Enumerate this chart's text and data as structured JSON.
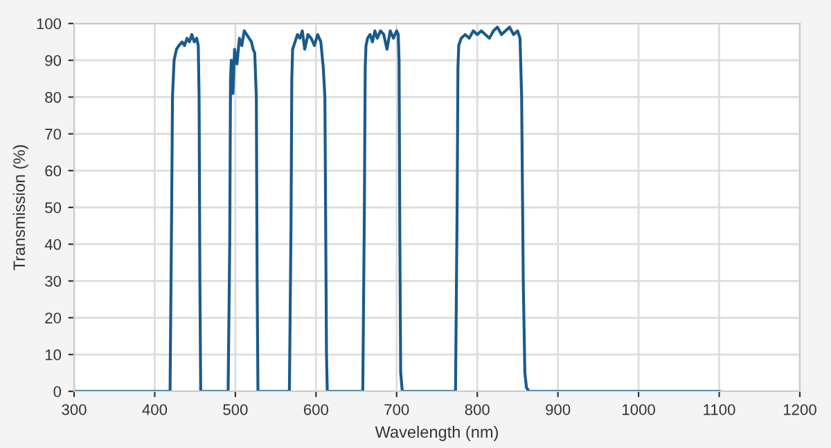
{
  "chart_data": {
    "type": "line",
    "xlabel": "Wavelength (nm)",
    "ylabel": "Transmission (%)",
    "xlim": [
      300,
      1200
    ],
    "ylim": [
      0,
      100
    ],
    "xticks": [
      300,
      400,
      500,
      600,
      700,
      800,
      900,
      1000,
      1100,
      1200
    ],
    "yticks": [
      0,
      10,
      20,
      30,
      40,
      50,
      60,
      70,
      80,
      90,
      100
    ],
    "grid": true,
    "marker": "none",
    "line_style": "solid",
    "series": [
      {
        "color": "#1a5a8c",
        "x": [
          300,
          419,
          421,
          422,
          424,
          427,
          430,
          434,
          437,
          440,
          443,
          446,
          449,
          452,
          454,
          455,
          456,
          457,
          459,
          491,
          493,
          494,
          495,
          497,
          499,
          502,
          505,
          508,
          511,
          514,
          517,
          520,
          522,
          524,
          526,
          527,
          528,
          530,
          567,
          569,
          570,
          571,
          574,
          577,
          580,
          583,
          586,
          590,
          594,
          598,
          602,
          606,
          609,
          611,
          612,
          613,
          614,
          616,
          658,
          660,
          661,
          662,
          664,
          667,
          670,
          673,
          676,
          680,
          684,
          688,
          692,
          696,
          700,
          702,
          703,
          704,
          705,
          707,
          773,
          775,
          776,
          777,
          780,
          785,
          790,
          795,
          800,
          805,
          810,
          815,
          820,
          825,
          830,
          835,
          840,
          845,
          850,
          853,
          855,
          857,
          859,
          861,
          864,
          1100
        ],
        "values": [
          0,
          0,
          50,
          80,
          90,
          93,
          94,
          95,
          94,
          96,
          95,
          97,
          95,
          96,
          94,
          80,
          30,
          0,
          0,
          0,
          40,
          85,
          90,
          81,
          93,
          89,
          96,
          94,
          98,
          97,
          96,
          95,
          93,
          92,
          80,
          30,
          0,
          0,
          0,
          45,
          85,
          93,
          95,
          97,
          96,
          98,
          93,
          97,
          96,
          94,
          97,
          95,
          88,
          80,
          45,
          10,
          0,
          0,
          0,
          50,
          88,
          94,
          96,
          97,
          95,
          98,
          96,
          98,
          97,
          93,
          98,
          96,
          98,
          97,
          90,
          40,
          5,
          0,
          0,
          50,
          88,
          94,
          96,
          97,
          96,
          98,
          97,
          98,
          97,
          96,
          98,
          99,
          97,
          98,
          99,
          97,
          98,
          96,
          80,
          30,
          5,
          1,
          0,
          0
        ]
      }
    ]
  }
}
